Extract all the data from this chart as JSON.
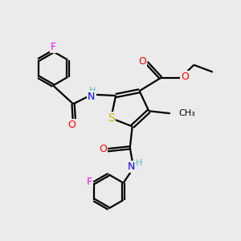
{
  "background_color": "#ebebeb",
  "atom_colors": {
    "C": "#000000",
    "H": "#5bbfbf",
    "N": "#0000ff",
    "O": "#ff0000",
    "S": "#b8b800",
    "F": "#ff00ff"
  },
  "bond_color": "#000000",
  "bond_width": 1.6,
  "font_size": 9,
  "figsize": [
    3.0,
    3.0
  ],
  "dpi": 100,
  "xlim": [
    0,
    10
  ],
  "ylim": [
    0,
    10
  ]
}
